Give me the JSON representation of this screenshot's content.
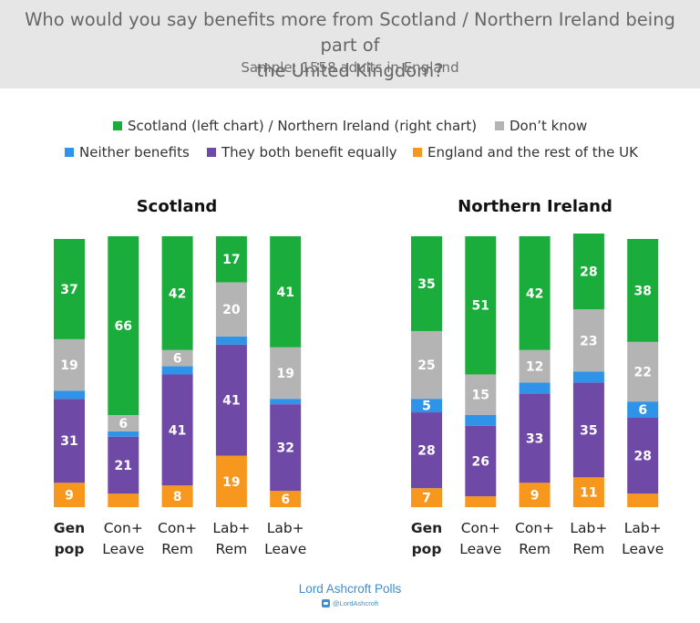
{
  "header": {
    "title_line1": "Who would you say benefits more from Scotland / Northern Ireland being part of",
    "title_line2": "the United Kingdom?",
    "subtitle": "Sample: 1558 adults in England"
  },
  "colors": {
    "green": "#1aad3b",
    "grey": "#b4b4b4",
    "blue": "#2f93e8",
    "purple": "#6f49a6",
    "orange": "#f7971e",
    "header_bg": "#e7e6e6",
    "brand": "#3a8fd6"
  },
  "legend": {
    "scotland_ni": "Scotland (left chart) / Northern Ireland (right chart)",
    "dont_know": "Don’t know",
    "neither": "Neither benefits",
    "both": "They both benefit equally",
    "england": "England and the rest of the UK"
  },
  "chart_data": [
    {
      "type": "bar",
      "stacked": true,
      "title": "Scotland",
      "categories": [
        [
          "Gen",
          "pop"
        ],
        [
          "Con+",
          "Leave"
        ],
        [
          "Con+",
          "Rem"
        ],
        [
          "Lab+",
          "Rem"
        ],
        [
          "Lab+",
          "Leave"
        ]
      ],
      "bold_category_index": 0,
      "series": [
        {
          "name": "England and the rest of the UK",
          "color_key": "orange",
          "values": [
            9,
            5,
            8,
            19,
            6
          ],
          "labels": [
            "9",
            "",
            "8",
            "19",
            "6"
          ]
        },
        {
          "name": "They both benefit equally",
          "color_key": "purple",
          "values": [
            31,
            21,
            41,
            41,
            32
          ],
          "labels": [
            "31",
            "21",
            "41",
            "41",
            "32"
          ]
        },
        {
          "name": "Neither benefits",
          "color_key": "blue",
          "values": [
            3,
            2,
            3,
            3,
            2
          ],
          "labels": [
            "",
            "",
            "",
            "",
            ""
          ]
        },
        {
          "name": "Don’t know",
          "color_key": "grey",
          "values": [
            19,
            6,
            6,
            20,
            19
          ],
          "labels": [
            "19",
            "6",
            "6",
            "20",
            "19"
          ]
        },
        {
          "name": "Scotland (left chart) / Northern Ireland (right chart)",
          "color_key": "green",
          "values": [
            37,
            66,
            42,
            17,
            41
          ],
          "labels": [
            "37",
            "66",
            "42",
            "17",
            "41"
          ]
        }
      ]
    },
    {
      "type": "bar",
      "stacked": true,
      "title": "Northern Ireland",
      "categories": [
        [
          "Gen",
          "pop"
        ],
        [
          "Con+",
          "Leave"
        ],
        [
          "Con+",
          "Rem"
        ],
        [
          "Lab+",
          "Rem"
        ],
        [
          "Lab+",
          "Leave"
        ]
      ],
      "bold_category_index": 0,
      "series": [
        {
          "name": "England and the rest of the UK",
          "color_key": "orange",
          "values": [
            7,
            4,
            9,
            11,
            5
          ],
          "labels": [
            "7",
            "",
            "9",
            "11",
            ""
          ]
        },
        {
          "name": "They both benefit equally",
          "color_key": "purple",
          "values": [
            28,
            26,
            33,
            35,
            28
          ],
          "labels": [
            "28",
            "26",
            "33",
            "35",
            "28"
          ]
        },
        {
          "name": "Neither benefits",
          "color_key": "blue",
          "values": [
            5,
            4,
            4,
            4,
            6
          ],
          "labels": [
            "5",
            "",
            "",
            "",
            "6"
          ]
        },
        {
          "name": "Don’t know",
          "color_key": "grey",
          "values": [
            25,
            15,
            12,
            23,
            22
          ],
          "labels": [
            "25",
            "15",
            "12",
            "23",
            "22"
          ]
        },
        {
          "name": "Scotland (left chart) / Northern Ireland (right chart)",
          "color_key": "green",
          "values": [
            35,
            51,
            42,
            28,
            38
          ],
          "labels": [
            "35",
            "51",
            "42",
            "28",
            "38"
          ]
        }
      ]
    }
  ],
  "footer": {
    "brand": "Lord Ashcroft Polls",
    "handle": "@LordAshcroft"
  }
}
